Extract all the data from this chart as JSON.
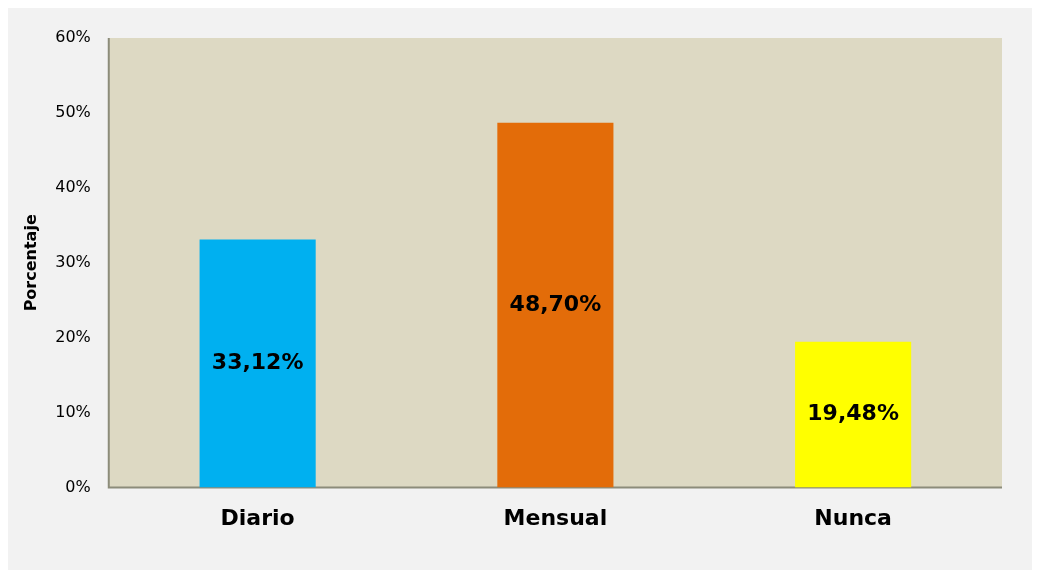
{
  "chart_data": {
    "type": "bar",
    "ylabel": "Porcentaje",
    "categories": [
      "Diario",
      "Mensual",
      "Nunca"
    ],
    "values": [
      33.12,
      48.7,
      19.48
    ],
    "colors": [
      "#00b0f0",
      "#e36c09",
      "#ffff00"
    ],
    "value_labels": [
      "33,12%",
      "48,70%",
      "19,48%"
    ],
    "ylim": [
      0,
      60
    ],
    "yticks": [
      {
        "value": 0,
        "label": "0%"
      },
      {
        "value": 10,
        "label": "10%"
      },
      {
        "value": 20,
        "label": "20%"
      },
      {
        "value": 30,
        "label": "30%"
      },
      {
        "value": 40,
        "label": "40%"
      },
      {
        "value": 50,
        "label": "50%"
      },
      {
        "value": 60,
        "label": "60%"
      }
    ],
    "grid": false,
    "legend": false
  }
}
